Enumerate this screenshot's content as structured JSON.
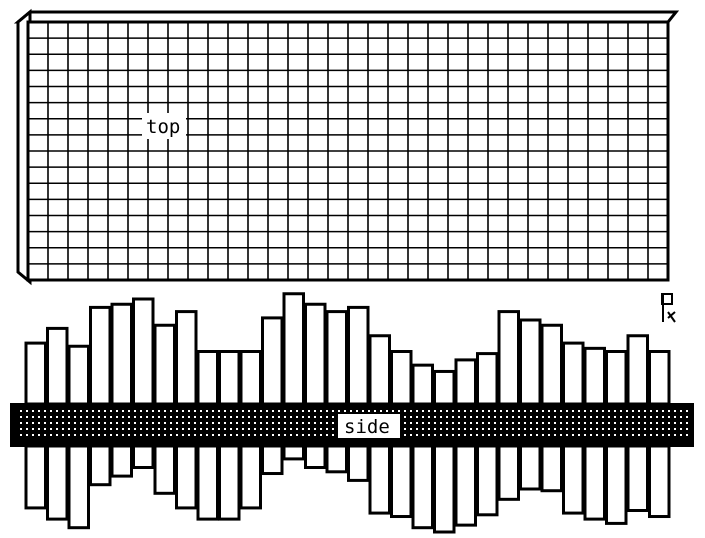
{
  "top_view": {
    "label": "top",
    "grid_columns": 32,
    "grid_rows": 16
  },
  "side_view": {
    "label": "side",
    "bar_upper_heights": [
      0.58,
      0.72,
      0.55,
      0.92,
      0.95,
      1.0,
      0.75,
      0.88,
      0.5,
      0.5,
      0.5,
      0.82,
      1.05,
      0.95,
      0.88,
      0.92,
      0.65,
      0.5,
      0.37,
      0.31,
      0.42,
      0.48,
      0.88,
      0.8,
      0.75,
      0.58,
      0.53,
      0.5,
      0.65,
      0.5
    ],
    "bar_lower_depths": [
      0.72,
      0.85,
      0.95,
      0.45,
      0.35,
      0.25,
      0.55,
      0.72,
      0.85,
      0.85,
      0.72,
      0.32,
      0.15,
      0.25,
      0.3,
      0.4,
      0.78,
      0.82,
      0.95,
      1.0,
      0.92,
      0.8,
      0.62,
      0.5,
      0.52,
      0.78,
      0.85,
      0.9,
      0.75,
      0.82
    ]
  },
  "corner_icon": "pointer-hand-icon",
  "colors": {
    "ink": "#000000",
    "paper": "#ffffff"
  }
}
